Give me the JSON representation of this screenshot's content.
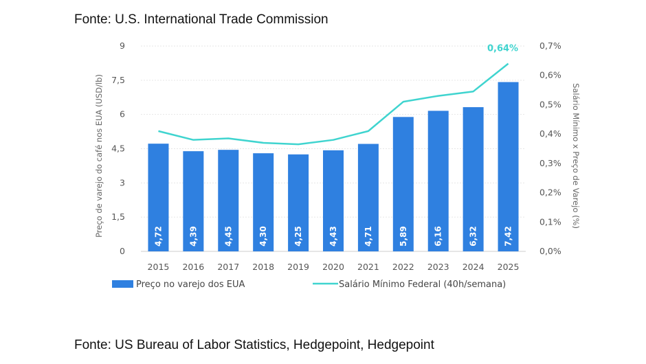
{
  "captions": {
    "top": "Fonte: U.S. International Trade Commission",
    "bottom": "Fonte: US Bureau of Labor Statistics, Hedgepoint, Hedgepoint"
  },
  "chart_data": {
    "type": "bar",
    "categories": [
      "2015",
      "2016",
      "2017",
      "2018",
      "2019",
      "2020",
      "2021",
      "2022",
      "2023",
      "2024",
      "2025"
    ],
    "series": [
      {
        "name": "Preço no varejo dos EUA",
        "type": "bar",
        "axis": "left",
        "color": "#2f80e0",
        "values": [
          4.72,
          4.39,
          4.45,
          4.3,
          4.25,
          4.43,
          4.71,
          5.89,
          6.16,
          6.32,
          7.42
        ],
        "labels": [
          "4,72",
          "4,39",
          "4,45",
          "4,30",
          "4,25",
          "4,43",
          "4,71",
          "5,89",
          "6,16",
          "6,32",
          "7,42"
        ]
      },
      {
        "name": "Salário Mínimo Federal (40h/semana)",
        "type": "line",
        "axis": "right",
        "color": "#3fd4cf",
        "values": [
          0.41,
          0.38,
          0.385,
          0.37,
          0.365,
          0.38,
          0.41,
          0.51,
          0.53,
          0.545,
          0.64
        ],
        "end_label": "0,64%"
      }
    ],
    "ylabel": "Preço de varejo do café nos EUA (USD/lb)",
    "y2label": "Salário Mínimo x Preço de Varejo (%)",
    "ylim": [
      0,
      9
    ],
    "y2lim": [
      0,
      0.7
    ],
    "yticks": [
      "0",
      "1,5",
      "3",
      "4,5",
      "6",
      "7,5",
      "9"
    ],
    "y2ticks": [
      "0,0%",
      "0,1%",
      "0,2%",
      "0,3%",
      "0,4%",
      "0,5%",
      "0,6%",
      "0,7%"
    ],
    "grid": true,
    "legend_position": "bottom"
  }
}
